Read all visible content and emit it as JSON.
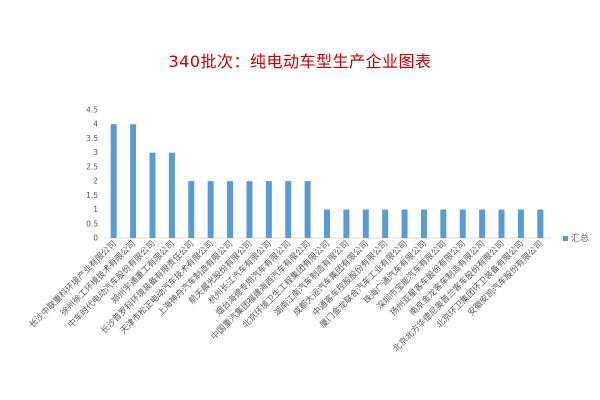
{
  "chart_data": {
    "type": "bar",
    "title": "340批次：纯电动车型生产企业图表",
    "ylim": [
      0,
      4.5
    ],
    "yticks": [
      "0",
      "0.5",
      "1",
      "1.5",
      "2",
      "2.5",
      "3",
      "3.5",
      "4",
      "4.5"
    ],
    "grid": false,
    "legend_position": "right",
    "series": [
      {
        "name": "汇总",
        "color": "#5b9bd5",
        "values": [
          4,
          4,
          3,
          3,
          2,
          2,
          2,
          2,
          2,
          2,
          2,
          1,
          1,
          1,
          1,
          1,
          1,
          1,
          1,
          1,
          1,
          1,
          1
        ]
      }
    ],
    "categories": [
      "长沙中联重科环境产业有限公司",
      "徐州徐工环境技术有限公司",
      "中车时代电动汽车股份有限公司",
      "郑州宇通重工有限公司",
      "长沙普罗科环境装备有限责任公司",
      "天津市松正电动汽车技术有限公司",
      "上海神舟汽车制造有限公司",
      "航天晨光股份有限公司",
      "杭州长江汽车有限公司",
      "烟台海德专用汽车有限公司",
      "中国重汽集团福建海西汽车有限公司",
      "北京环境卫生工程集团有限公司",
      "湖南江南汽车制造有限公司",
      "成都大运汽车集团有限公司",
      "中通客车控股股份有限公司",
      "厦门金龙联合汽车工业有限公司",
      "珠海广通汽车有限公司",
      "深圳市宝能汽车有限公司",
      "扬州亚星客车股份有限公司",
      "南京金龙客车制造有限公司",
      "北京北方华德尼奥普兰客车股份有限公司",
      "北京环卫集团环卫装备有限公司",
      "安徽安凯汽车股份有限公司"
    ]
  }
}
